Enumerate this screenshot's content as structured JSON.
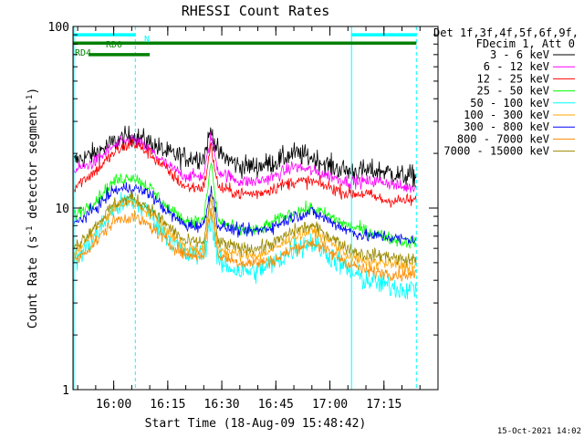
{
  "chart_data": {
    "type": "line",
    "title": "RHESSI Count Rates",
    "xlabel": "Start Time (18-Aug-09 15:48:42)",
    "ylabel": "Count Rate (s",
    "ylabel_sup": "-1",
    "ylabel_tail": " detector segment",
    "ylabel_close": ")",
    "yscale": "log",
    "ylim": [
      1,
      100
    ],
    "y_ticks": [
      1,
      10,
      100
    ],
    "y_tick_labels": [
      "1",
      "10",
      "100"
    ],
    "x_start": "15:48:42",
    "x_end": "17:30:00",
    "x_ticks": [
      "16:00",
      "16:15",
      "16:30",
      "16:45",
      "17:00",
      "17:15"
    ],
    "legend_header": [
      "Det 1f,3f,4f,5f,6f,9f,",
      "FDecim 1, Att 0"
    ],
    "legend_position": "right",
    "series": [
      {
        "name": "3 - 6 keV",
        "color": "#000000",
        "points": [
          [
            "15:48:42",
            18
          ],
          [
            "15:55",
            20
          ],
          [
            "16:00",
            23
          ],
          [
            "16:05",
            25
          ],
          [
            "16:10",
            23
          ],
          [
            "16:15",
            20
          ],
          [
            "16:20",
            19
          ],
          [
            "16:25",
            19
          ],
          [
            "16:27",
            27
          ],
          [
            "16:29",
            20
          ],
          [
            "16:35",
            17
          ],
          [
            "16:40",
            17
          ],
          [
            "16:45",
            18
          ],
          [
            "16:50",
            20
          ],
          [
            "16:55",
            19
          ],
          [
            "17:00",
            17
          ],
          [
            "17:05",
            16
          ],
          [
            "17:10",
            16
          ],
          [
            "17:15",
            16
          ],
          [
            "17:20",
            15
          ],
          [
            "17:24",
            15
          ]
        ]
      },
      {
        "name": "6 - 12 keV",
        "color": "#ff00ff",
        "points": [
          [
            "15:48:42",
            16
          ],
          [
            "15:55",
            18
          ],
          [
            "16:00",
            22
          ],
          [
            "16:05",
            24
          ],
          [
            "16:10",
            21
          ],
          [
            "16:15",
            17
          ],
          [
            "16:20",
            15
          ],
          [
            "16:25",
            15
          ],
          [
            "16:27",
            25
          ],
          [
            "16:29",
            16
          ],
          [
            "16:35",
            14
          ],
          [
            "16:40",
            14
          ],
          [
            "16:45",
            15
          ],
          [
            "16:50",
            17
          ],
          [
            "16:55",
            16
          ],
          [
            "17:00",
            15
          ],
          [
            "17:05",
            14
          ],
          [
            "17:10",
            14
          ],
          [
            "17:15",
            14
          ],
          [
            "17:20",
            13
          ],
          [
            "17:24",
            13
          ]
        ]
      },
      {
        "name": "12 - 25 keV",
        "color": "#ff0000",
        "points": [
          [
            "15:48:42",
            13
          ],
          [
            "15:55",
            16
          ],
          [
            "16:00",
            20
          ],
          [
            "16:05",
            23
          ],
          [
            "16:10",
            20
          ],
          [
            "16:15",
            16
          ],
          [
            "16:20",
            13
          ],
          [
            "16:25",
            13
          ],
          [
            "16:27",
            22
          ],
          [
            "16:29",
            13
          ],
          [
            "16:35",
            12
          ],
          [
            "16:40",
            12
          ],
          [
            "16:45",
            13
          ],
          [
            "16:50",
            14
          ],
          [
            "16:55",
            14
          ],
          [
            "17:00",
            13
          ],
          [
            "17:05",
            12
          ],
          [
            "17:10",
            12
          ],
          [
            "17:15",
            11
          ],
          [
            "17:20",
            11
          ],
          [
            "17:24",
            11
          ]
        ]
      },
      {
        "name": "25 - 50 keV",
        "color": "#00ff00",
        "points": [
          [
            "15:48:42",
            9
          ],
          [
            "15:55",
            11
          ],
          [
            "16:00",
            14
          ],
          [
            "16:05",
            15
          ],
          [
            "16:10",
            13
          ],
          [
            "16:15",
            10
          ],
          [
            "16:20",
            8.5
          ],
          [
            "16:25",
            8.5
          ],
          [
            "16:27",
            18
          ],
          [
            "16:29",
            8.5
          ],
          [
            "16:35",
            7.5
          ],
          [
            "16:40",
            7.5
          ],
          [
            "16:45",
            8.5
          ],
          [
            "16:50",
            9.5
          ],
          [
            "16:55",
            10
          ],
          [
            "17:00",
            9
          ],
          [
            "17:05",
            8
          ],
          [
            "17:10",
            7.5
          ],
          [
            "17:15",
            7
          ],
          [
            "17:20",
            6.5
          ],
          [
            "17:24",
            6.5
          ]
        ]
      },
      {
        "name": "50 - 100 keV",
        "color": "#00ffff",
        "points": [
          [
            "15:48:42",
            5
          ],
          [
            "15:55",
            7
          ],
          [
            "16:00",
            10
          ],
          [
            "16:05",
            11
          ],
          [
            "16:10",
            9.5
          ],
          [
            "16:15",
            7
          ],
          [
            "16:20",
            5.5
          ],
          [
            "16:25",
            5.5
          ],
          [
            "16:27",
            9
          ],
          [
            "16:29",
            5
          ],
          [
            "16:35",
            4.5
          ],
          [
            "16:40",
            4.5
          ],
          [
            "16:45",
            5
          ],
          [
            "16:50",
            6
          ],
          [
            "16:55",
            6.5
          ],
          [
            "17:00",
            5.5
          ],
          [
            "17:05",
            4.5
          ],
          [
            "17:10",
            4
          ],
          [
            "17:15",
            3.8
          ],
          [
            "17:20",
            3.6
          ],
          [
            "17:24",
            3.6
          ]
        ]
      },
      {
        "name": "100 - 300 keV",
        "color": "#ffa500",
        "points": [
          [
            "15:48:42",
            5.5
          ],
          [
            "15:55",
            7.5
          ],
          [
            "16:00",
            10
          ],
          [
            "16:05",
            11
          ],
          [
            "16:10",
            9.5
          ],
          [
            "16:15",
            7.5
          ],
          [
            "16:20",
            6
          ],
          [
            "16:25",
            6
          ],
          [
            "16:27",
            11
          ],
          [
            "16:29",
            6
          ],
          [
            "16:35",
            5.5
          ],
          [
            "16:40",
            5.5
          ],
          [
            "16:45",
            6
          ],
          [
            "16:50",
            7
          ],
          [
            "16:55",
            7.5
          ],
          [
            "17:00",
            6.5
          ],
          [
            "17:05",
            5.5
          ],
          [
            "17:10",
            5
          ],
          [
            "17:15",
            5
          ],
          [
            "17:20",
            4.8
          ],
          [
            "17:24",
            4.8
          ]
        ]
      },
      {
        "name": "300 - 800 keV",
        "color": "#0000ff",
        "points": [
          [
            "15:48:42",
            8
          ],
          [
            "15:55",
            10
          ],
          [
            "16:00",
            12.5
          ],
          [
            "16:05",
            13
          ],
          [
            "16:10",
            12
          ],
          [
            "16:15",
            9.5
          ],
          [
            "16:20",
            8
          ],
          [
            "16:25",
            8
          ],
          [
            "16:27",
            13
          ],
          [
            "16:29",
            8
          ],
          [
            "16:35",
            7.5
          ],
          [
            "16:40",
            7.5
          ],
          [
            "16:45",
            8
          ],
          [
            "16:50",
            9
          ],
          [
            "16:55",
            9.5
          ],
          [
            "17:00",
            8.5
          ],
          [
            "17:05",
            7.5
          ],
          [
            "17:10",
            7
          ],
          [
            "17:15",
            7
          ],
          [
            "17:20",
            6.7
          ],
          [
            "17:24",
            6.7
          ]
        ]
      },
      {
        "name": "800 - 7000 keV",
        "color": "#ff8c00",
        "points": [
          [
            "15:48:42",
            5
          ],
          [
            "15:55",
            6.5
          ],
          [
            "16:00",
            8.5
          ],
          [
            "16:05",
            9
          ],
          [
            "16:10",
            8
          ],
          [
            "16:15",
            6.5
          ],
          [
            "16:20",
            5.5
          ],
          [
            "16:25",
            5.5
          ],
          [
            "16:27",
            10
          ],
          [
            "16:29",
            5.5
          ],
          [
            "16:35",
            5
          ],
          [
            "16:40",
            5
          ],
          [
            "16:45",
            5.2
          ],
          [
            "16:50",
            6
          ],
          [
            "16:55",
            6.5
          ],
          [
            "17:00",
            5.7
          ],
          [
            "17:05",
            5
          ],
          [
            "17:10",
            4.5
          ],
          [
            "17:15",
            4.4
          ],
          [
            "17:20",
            4.3
          ],
          [
            "17:24",
            4.3
          ]
        ]
      },
      {
        "name": "7000 - 15000 keV",
        "color": "#9a8a00",
        "points": [
          [
            "15:48:42",
            6
          ],
          [
            "15:55",
            8
          ],
          [
            "16:00",
            10.5
          ],
          [
            "16:05",
            11.5
          ],
          [
            "16:10",
            10
          ],
          [
            "16:15",
            8
          ],
          [
            "16:20",
            6.5
          ],
          [
            "16:25",
            6.5
          ],
          [
            "16:27",
            12
          ],
          [
            "16:29",
            6.5
          ],
          [
            "16:35",
            6
          ],
          [
            "16:40",
            6
          ],
          [
            "16:45",
            6.5
          ],
          [
            "16:50",
            7.5
          ],
          [
            "16:55",
            8
          ],
          [
            "17:00",
            7
          ],
          [
            "17:05",
            6
          ],
          [
            "17:10",
            5.5
          ],
          [
            "17:15",
            5.5
          ],
          [
            "17:20",
            5.2
          ],
          [
            "17:24",
            5.2
          ]
        ]
      }
    ],
    "annotations": {
      "bars": [
        {
          "label": "N",
          "color": "#00ffff",
          "start": "15:48:42",
          "end": "16:06",
          "y": 90
        },
        {
          "label": "",
          "color": "#00ffff",
          "start": "17:06",
          "end": "17:24",
          "y": 90
        },
        {
          "label": "RD0",
          "color": "#008000",
          "start": "15:48:42",
          "end": "17:24",
          "y": 81
        },
        {
          "label": "RD4",
          "color": "#008000",
          "start": "15:53",
          "end": "16:10",
          "y": 70
        }
      ],
      "vlines_solid": [
        "17:06"
      ],
      "vlines_dashed": [
        "16:06",
        "17:24"
      ]
    },
    "timestamp": "15-Oct-2021 14:02"
  }
}
